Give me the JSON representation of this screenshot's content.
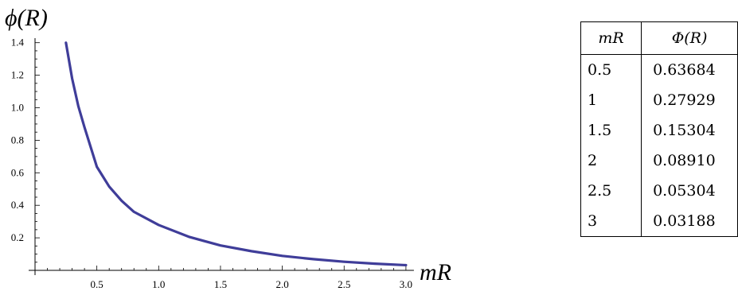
{
  "chart_data": {
    "type": "line",
    "title": "",
    "ylabel": "ϕ(R)",
    "xlabel": "mR",
    "xlim": [
      0.0,
      3.0
    ],
    "ylim": [
      0.0,
      1.45
    ],
    "x_ticks": [
      "0.5",
      "1.0",
      "1.5",
      "2.0",
      "2.5",
      "3.0"
    ],
    "y_ticks": [
      "0.2",
      "0.4",
      "0.6",
      "0.8",
      "1.0",
      "1.2",
      "1.4"
    ],
    "grid": false,
    "series": [
      {
        "color": "#3f3d99",
        "x": [
          0.25,
          0.3,
          0.35,
          0.4,
          0.5,
          0.6,
          0.7,
          0.8,
          1.0,
          1.25,
          1.5,
          1.75,
          2.0,
          2.25,
          2.5,
          2.75,
          3.0
        ],
        "y": [
          1.4,
          1.18,
          1.01,
          0.88,
          0.637,
          0.515,
          0.428,
          0.36,
          0.279,
          0.205,
          0.153,
          0.118,
          0.089,
          0.069,
          0.053,
          0.041,
          0.032
        ]
      }
    ]
  },
  "table": {
    "headers": [
      "mR",
      "Φ(R)"
    ],
    "rows": [
      [
        "0.5",
        "0.63684"
      ],
      [
        "1",
        "0.27929"
      ],
      [
        "1.5",
        "0.15304"
      ],
      [
        "2",
        "0.08910"
      ],
      [
        "2.5",
        "0.05304"
      ],
      [
        "3",
        "0.03188"
      ]
    ]
  }
}
